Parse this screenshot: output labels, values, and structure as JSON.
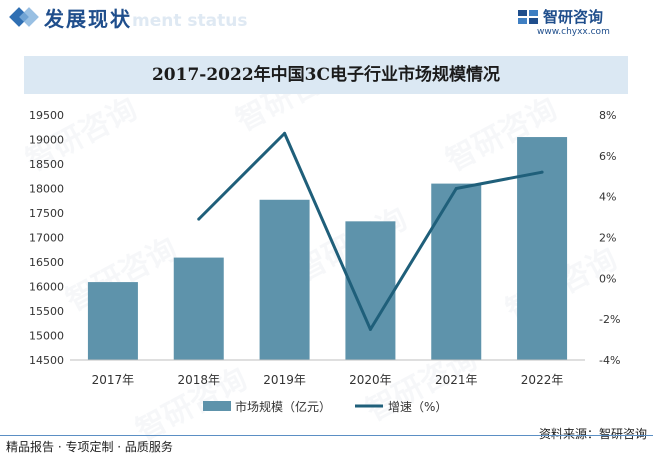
{
  "header": {
    "title": "发展现状",
    "subtitle_watermark": "ment status",
    "brand_name": "智研咨询",
    "brand_url": "www.chyxx.com"
  },
  "colors": {
    "bar": "#5e93ab",
    "line": "#1f5f7a",
    "title_band": "#dbe8f3",
    "brand": "#1f4e8c"
  },
  "watermark_text": "智研咨询",
  "chart_data": {
    "type": "bar+line",
    "title": "2017-2022年中国3C电子行业市场规模情况",
    "categories": [
      "2017年",
      "2018年",
      "2019年",
      "2020年",
      "2021年",
      "2022年"
    ],
    "series": [
      {
        "name": "市场规模（亿元）",
        "type": "bar",
        "axis": "left",
        "values": [
          16090,
          16590,
          17770,
          17330,
          18100,
          19050
        ]
      },
      {
        "name": "增速（%）",
        "type": "line",
        "axis": "right",
        "values": [
          null,
          2.9,
          7.1,
          -2.5,
          4.4,
          5.2
        ]
      }
    ],
    "left_axis": {
      "ylim": [
        14500,
        19500
      ],
      "ticks": [
        "14500",
        "15000",
        "15500",
        "16000",
        "16500",
        "17000",
        "17500",
        "18000",
        "18500",
        "19000",
        "19500"
      ]
    },
    "right_axis": {
      "ylim": [
        -4,
        8
      ],
      "ticks": [
        "-4%",
        "-2%",
        "0%",
        "2%",
        "4%",
        "6%",
        "8%"
      ]
    },
    "grid": false,
    "legend_position": "bottom-center"
  },
  "footer": {
    "left": "精品报告 · 专项定制 · 品质服务",
    "right": "资料来源：智研咨询"
  }
}
